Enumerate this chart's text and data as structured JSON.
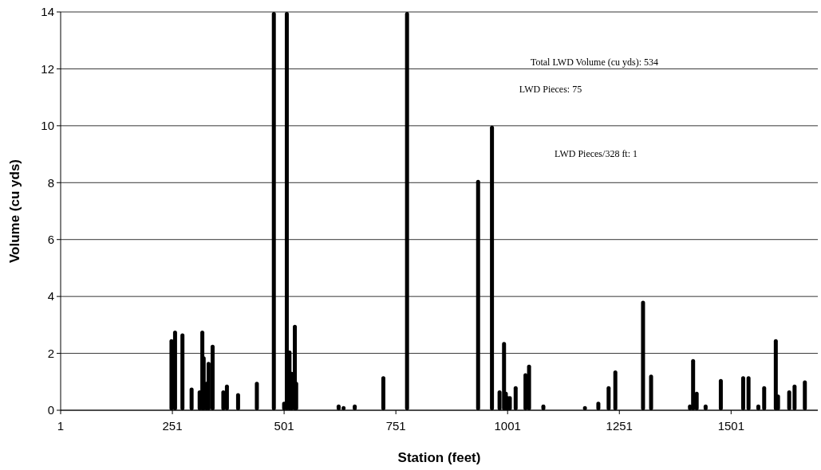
{
  "chart_data": {
    "type": "bar",
    "xlabel": "Station (feet)",
    "ylabel": "Volume (cu yds)",
    "x": [
      249,
      257,
      273.5,
      294,
      312,
      318,
      321,
      327,
      332,
      341,
      365,
      373,
      398,
      440,
      478,
      501,
      507,
      513,
      518,
      525,
      528,
      623,
      634,
      659,
      723,
      776,
      935,
      966,
      983,
      993,
      997,
      1001,
      1006,
      1019,
      1041,
      1049,
      1081,
      1174,
      1204,
      1227,
      1242,
      1304,
      1322,
      1409,
      1416,
      1424,
      1444,
      1478,
      1528,
      1540,
      1562,
      1575,
      1601,
      1606,
      1631,
      1643,
      1666
    ],
    "values": [
      2.5,
      2.8,
      2.7,
      0.8,
      0.7,
      2.8,
      1.9,
      1.0,
      1.7,
      2.3,
      0.7,
      0.9,
      0.6,
      1.0,
      14,
      0.3,
      14,
      2.1,
      1.35,
      3.0,
      1.0,
      0.2,
      0.15,
      0.2,
      1.2,
      14,
      8.1,
      10.0,
      0.7,
      2.4,
      0.65,
      0.5,
      0.5,
      0.85,
      1.3,
      1.6,
      0.2,
      0.15,
      0.3,
      0.85,
      1.4,
      3.85,
      1.25,
      0.2,
      1.8,
      0.65,
      0.2,
      1.1,
      1.2,
      1.2,
      0.2,
      0.85,
      2.5,
      0.55,
      0.7,
      0.9,
      1.05
    ],
    "color": "#000000",
    "xlim": [
      1,
      1695
    ],
    "xticks": [
      1,
      251,
      501,
      751,
      1001,
      1251,
      1501
    ],
    "ylim": [
      0,
      14
    ],
    "yticks": [
      0,
      2,
      4,
      6,
      8,
      10,
      12,
      14
    ],
    "grid": "y",
    "annotations": [
      "Total LWD Volume (cu yds): 534",
      "LWD Pieces: 75",
      "LWD Pieces/328 ft: 1"
    ]
  }
}
